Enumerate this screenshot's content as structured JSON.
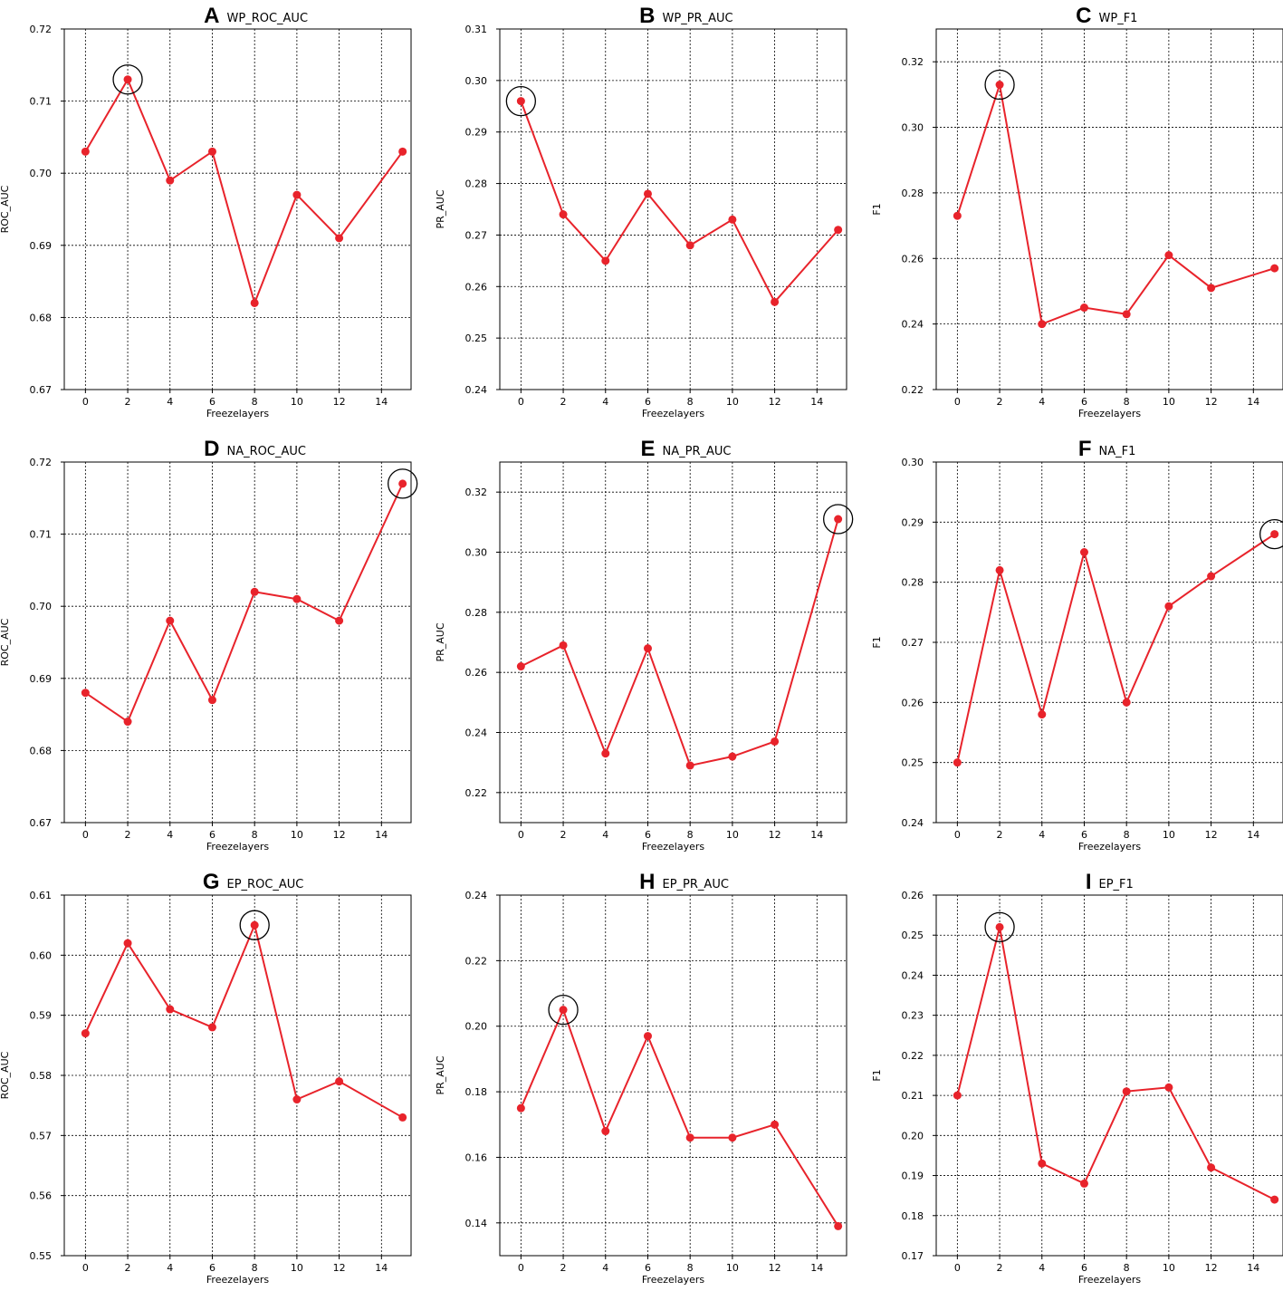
{
  "colors": {
    "line": "#e8232b",
    "highlight_circle": "#000000",
    "grid": "#000000"
  },
  "chart_data": [
    {
      "panel": "A",
      "title": "WP_ROC_AUC",
      "type": "line",
      "xlabel": "Freezelayers",
      "ylabel": "ROC_AUC",
      "x": [
        0,
        2,
        4,
        6,
        8,
        10,
        12,
        15
      ],
      "values": [
        0.703,
        0.713,
        0.699,
        0.703,
        0.682,
        0.697,
        0.691,
        0.703
      ],
      "xticks": [
        0,
        2,
        4,
        6,
        8,
        10,
        12,
        14
      ],
      "xticklabels": [
        "0",
        "2",
        "4",
        "6",
        "8",
        "10",
        "12",
        "14"
      ],
      "yticks": [
        0.67,
        0.68,
        0.69,
        0.7,
        0.71,
        0.72
      ],
      "yticklabels": [
        "0.67",
        "0.68",
        "0.69",
        "0.70",
        "0.71",
        "0.72"
      ],
      "ylim": [
        0.67,
        0.72
      ],
      "xlim": [
        -1,
        15.4
      ],
      "highlight_x": 2,
      "grid": true
    },
    {
      "panel": "B",
      "title": "WP_PR_AUC",
      "type": "line",
      "xlabel": "Freezelayers",
      "ylabel": "PR_AUC",
      "x": [
        0,
        2,
        4,
        6,
        8,
        10,
        12,
        15
      ],
      "values": [
        0.296,
        0.274,
        0.265,
        0.278,
        0.268,
        0.273,
        0.257,
        0.271
      ],
      "xticks": [
        0,
        2,
        4,
        6,
        8,
        10,
        12,
        14
      ],
      "xticklabels": [
        "0",
        "2",
        "4",
        "6",
        "8",
        "10",
        "12",
        "14"
      ],
      "yticks": [
        0.24,
        0.25,
        0.26,
        0.27,
        0.28,
        0.29,
        0.3,
        0.31
      ],
      "yticklabels": [
        "0.24",
        "0.25",
        "0.26",
        "0.27",
        "0.28",
        "0.29",
        "0.30",
        "0.31"
      ],
      "ylim": [
        0.24,
        0.31
      ],
      "xlim": [
        -1,
        15.4
      ],
      "highlight_x": 0,
      "grid": true
    },
    {
      "panel": "C",
      "title": "WP_F1",
      "type": "line",
      "xlabel": "Freezelayers",
      "ylabel": "F1",
      "x": [
        0,
        2,
        4,
        6,
        8,
        10,
        12,
        15
      ],
      "values": [
        0.273,
        0.313,
        0.24,
        0.245,
        0.243,
        0.261,
        0.251,
        0.257
      ],
      "xticks": [
        0,
        2,
        4,
        6,
        8,
        10,
        12,
        14
      ],
      "xticklabels": [
        "0",
        "2",
        "4",
        "6",
        "8",
        "10",
        "12",
        "14"
      ],
      "yticks": [
        0.22,
        0.24,
        0.26,
        0.28,
        0.3,
        0.32
      ],
      "yticklabels": [
        "0.22",
        "0.24",
        "0.26",
        "0.28",
        "0.30",
        "0.32"
      ],
      "ylim": [
        0.22,
        0.33
      ],
      "xlim": [
        -1,
        15.4
      ],
      "highlight_x": 2,
      "grid": true
    },
    {
      "panel": "D",
      "title": "NA_ROC_AUC",
      "type": "line",
      "xlabel": "Freezelayers",
      "ylabel": "ROC_AUC",
      "x": [
        0,
        2,
        4,
        6,
        8,
        10,
        12,
        15
      ],
      "values": [
        0.688,
        0.684,
        0.698,
        0.687,
        0.702,
        0.701,
        0.698,
        0.717
      ],
      "xticks": [
        0,
        2,
        4,
        6,
        8,
        10,
        12,
        14
      ],
      "xticklabels": [
        "0",
        "2",
        "4",
        "6",
        "8",
        "10",
        "12",
        "14"
      ],
      "yticks": [
        0.67,
        0.68,
        0.69,
        0.7,
        0.71,
        0.72
      ],
      "yticklabels": [
        "0.67",
        "0.68",
        "0.69",
        "0.70",
        "0.71",
        "0.72"
      ],
      "ylim": [
        0.67,
        0.72
      ],
      "xlim": [
        -1,
        15.4
      ],
      "highlight_x": 15,
      "grid": true
    },
    {
      "panel": "E",
      "title": "NA_PR_AUC",
      "type": "line",
      "xlabel": "Freezelayers",
      "ylabel": "PR_AUC",
      "x": [
        0,
        2,
        4,
        6,
        8,
        10,
        12,
        15
      ],
      "values": [
        0.262,
        0.269,
        0.233,
        0.268,
        0.229,
        0.232,
        0.237,
        0.311
      ],
      "xticks": [
        0,
        2,
        4,
        6,
        8,
        10,
        12,
        14
      ],
      "xticklabels": [
        "0",
        "2",
        "4",
        "6",
        "8",
        "10",
        "12",
        "14"
      ],
      "yticks": [
        0.22,
        0.24,
        0.26,
        0.28,
        0.3,
        0.32
      ],
      "yticklabels": [
        "0.22",
        "0.24",
        "0.26",
        "0.28",
        "0.30",
        "0.32"
      ],
      "ylim": [
        0.21,
        0.33
      ],
      "xlim": [
        -1,
        15.4
      ],
      "highlight_x": 15,
      "grid": true
    },
    {
      "panel": "F",
      "title": "NA_F1",
      "type": "line",
      "xlabel": "Freezelayers",
      "ylabel": "F1",
      "x": [
        0,
        2,
        4,
        6,
        8,
        10,
        12,
        15
      ],
      "values": [
        0.25,
        0.282,
        0.258,
        0.285,
        0.26,
        0.276,
        0.281,
        0.288
      ],
      "xticks": [
        0,
        2,
        4,
        6,
        8,
        10,
        12,
        14
      ],
      "xticklabels": [
        "0",
        "2",
        "4",
        "6",
        "8",
        "10",
        "12",
        "14"
      ],
      "yticks": [
        0.24,
        0.25,
        0.26,
        0.27,
        0.28,
        0.29,
        0.3
      ],
      "yticklabels": [
        "0.24",
        "0.25",
        "0.26",
        "0.27",
        "0.28",
        "0.29",
        "0.30"
      ],
      "ylim": [
        0.24,
        0.3
      ],
      "xlim": [
        -1,
        15.4
      ],
      "highlight_x": 15,
      "grid": true
    },
    {
      "panel": "G",
      "title": "EP_ROC_AUC",
      "type": "line",
      "xlabel": "Freezelayers",
      "ylabel": "ROC_AUC",
      "x": [
        0,
        2,
        4,
        6,
        8,
        10,
        12,
        15
      ],
      "values": [
        0.587,
        0.602,
        0.591,
        0.588,
        0.605,
        0.576,
        0.579,
        0.573
      ],
      "xticks": [
        0,
        2,
        4,
        6,
        8,
        10,
        12,
        14
      ],
      "xticklabels": [
        "0",
        "2",
        "4",
        "6",
        "8",
        "10",
        "12",
        "14"
      ],
      "yticks": [
        0.55,
        0.56,
        0.57,
        0.58,
        0.59,
        0.6,
        0.61
      ],
      "yticklabels": [
        "0.55",
        "0.56",
        "0.57",
        "0.58",
        "0.59",
        "0.60",
        "0.61"
      ],
      "ylim": [
        0.55,
        0.61
      ],
      "xlim": [
        -1,
        15.4
      ],
      "highlight_x": 8,
      "grid": true
    },
    {
      "panel": "H",
      "title": "EP_PR_AUC",
      "type": "line",
      "xlabel": "Freezelayers",
      "ylabel": "PR_AUC",
      "x": [
        0,
        2,
        4,
        6,
        8,
        10,
        12,
        15
      ],
      "values": [
        0.175,
        0.205,
        0.168,
        0.197,
        0.166,
        0.166,
        0.17,
        0.139
      ],
      "xticks": [
        0,
        2,
        4,
        6,
        8,
        10,
        12,
        14
      ],
      "xticklabels": [
        "0",
        "2",
        "4",
        "6",
        "8",
        "10",
        "12",
        "14"
      ],
      "yticks": [
        0.14,
        0.16,
        0.18,
        0.2,
        0.22,
        0.24
      ],
      "yticklabels": [
        "0.14",
        "0.16",
        "0.18",
        "0.20",
        "0.22",
        "0.24"
      ],
      "ylim": [
        0.13,
        0.24
      ],
      "xlim": [
        -1,
        15.4
      ],
      "highlight_x": 2,
      "grid": true
    },
    {
      "panel": "I",
      "title": "EP_F1",
      "type": "line",
      "xlabel": "Freezelayers",
      "ylabel": "F1",
      "x": [
        0,
        2,
        4,
        6,
        8,
        10,
        12,
        15
      ],
      "values": [
        0.21,
        0.252,
        0.193,
        0.188,
        0.211,
        0.212,
        0.192,
        0.184
      ],
      "xticks": [
        0,
        2,
        4,
        6,
        8,
        10,
        12,
        14
      ],
      "xticklabels": [
        "0",
        "2",
        "4",
        "6",
        "8",
        "10",
        "12",
        "14"
      ],
      "yticks": [
        0.17,
        0.18,
        0.19,
        0.2,
        0.21,
        0.22,
        0.23,
        0.24,
        0.25,
        0.26
      ],
      "yticklabels": [
        "0.17",
        "0.18",
        "0.19",
        "0.20",
        "0.21",
        "0.22",
        "0.23",
        "0.24",
        "0.25",
        "0.26"
      ],
      "ylim": [
        0.17,
        0.26
      ],
      "xlim": [
        -1,
        15.4
      ],
      "highlight_x": 2,
      "grid": true
    }
  ]
}
